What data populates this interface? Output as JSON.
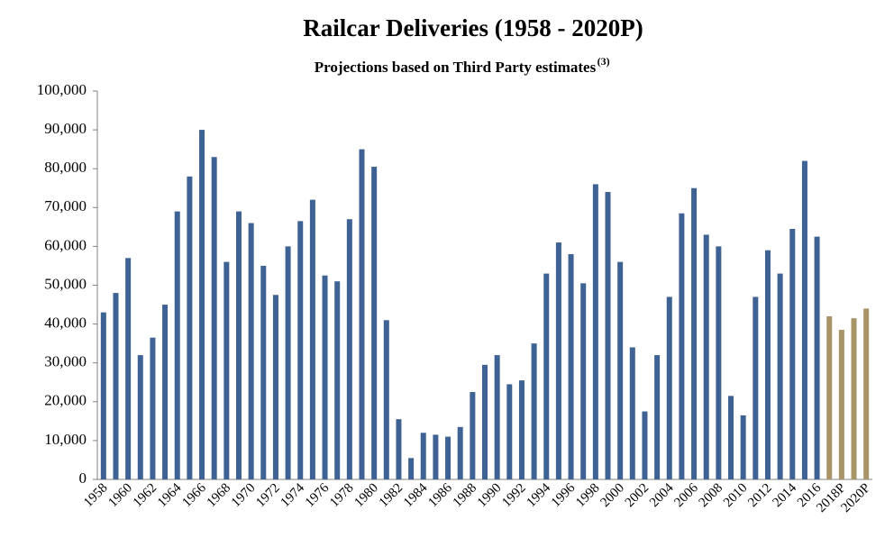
{
  "chart_data": {
    "type": "bar",
    "title": "Railcar Deliveries  (1958 - 2020P)",
    "subtitle": "Projections based on Third Party estimates",
    "subtitle_note": "(3)",
    "categories": [
      "1958",
      null,
      "1960",
      null,
      "1962",
      null,
      "1964",
      null,
      "1966",
      null,
      "1968",
      null,
      "1970",
      null,
      "1972",
      null,
      "1974",
      null,
      "1976",
      null,
      "1978",
      null,
      "1980",
      null,
      "1982",
      null,
      "1984",
      null,
      "1986",
      null,
      "1988",
      null,
      "1990",
      null,
      "1992",
      null,
      "1994",
      null,
      "1996",
      null,
      "1998",
      null,
      "2000",
      null,
      "2002",
      null,
      "2004",
      null,
      "2006",
      null,
      "2008",
      null,
      "2010",
      null,
      "2012",
      null,
      "2014",
      null,
      "2016",
      null,
      "2018P",
      null,
      "2020P"
    ],
    "values": [
      43000,
      48000,
      57000,
      32000,
      36500,
      45000,
      69000,
      78000,
      90000,
      83000,
      56000,
      69000,
      66000,
      55000,
      47500,
      60000,
      66500,
      72000,
      52500,
      51000,
      67000,
      85000,
      80500,
      41000,
      15500,
      5500,
      12000,
      11500,
      11000,
      13500,
      22500,
      29500,
      32000,
      24500,
      25500,
      35000,
      53000,
      61000,
      58000,
      50500,
      76000,
      74000,
      56000,
      34000,
      17500,
      32000,
      47000,
      68500,
      75000,
      63000,
      60000,
      21500,
      16500,
      47000,
      59000,
      53000,
      64500,
      82000,
      62500,
      42000,
      38500,
      41500,
      44000
    ],
    "colors": [
      "#3e6293",
      "#3e6293",
      "#3e6293",
      "#3e6293",
      "#3e6293",
      "#3e6293",
      "#3e6293",
      "#3e6293",
      "#3e6293",
      "#3e6293",
      "#3e6293",
      "#3e6293",
      "#3e6293",
      "#3e6293",
      "#3e6293",
      "#3e6293",
      "#3e6293",
      "#3e6293",
      "#3e6293",
      "#3e6293",
      "#3e6293",
      "#3e6293",
      "#3e6293",
      "#3e6293",
      "#3e6293",
      "#3e6293",
      "#3e6293",
      "#3e6293",
      "#3e6293",
      "#3e6293",
      "#3e6293",
      "#3e6293",
      "#3e6293",
      "#3e6293",
      "#3e6293",
      "#3e6293",
      "#3e6293",
      "#3e6293",
      "#3e6293",
      "#3e6293",
      "#3e6293",
      "#3e6293",
      "#3e6293",
      "#3e6293",
      "#3e6293",
      "#3e6293",
      "#3e6293",
      "#3e6293",
      "#3e6293",
      "#3e6293",
      "#3e6293",
      "#3e6293",
      "#3e6293",
      "#3e6293",
      "#3e6293",
      "#3e6293",
      "#3e6293",
      "#3e6293",
      "#3e6293",
      "#a99468",
      "#a99468",
      "#a99468",
      "#a99468"
    ],
    "ylim": [
      0,
      100000
    ],
    "yticks": [
      0,
      {
        "value": 10000,
        "label": "10,000"
      },
      {
        "value": 20000,
        "label": "20,000"
      },
      {
        "value": 30000,
        "label": "30,000"
      },
      {
        "value": 40000,
        "label": "40,000"
      },
      {
        "value": 50000,
        "label": "50,000"
      },
      {
        "value": 60000,
        "label": "60,000"
      },
      {
        "value": 70000,
        "label": "70,000"
      },
      {
        "value": 80000,
        "label": "80,000"
      },
      {
        "value": 90000,
        "label": "90,000"
      },
      {
        "value": 100000,
        "label": "100,000"
      }
    ],
    "grid": false
  }
}
